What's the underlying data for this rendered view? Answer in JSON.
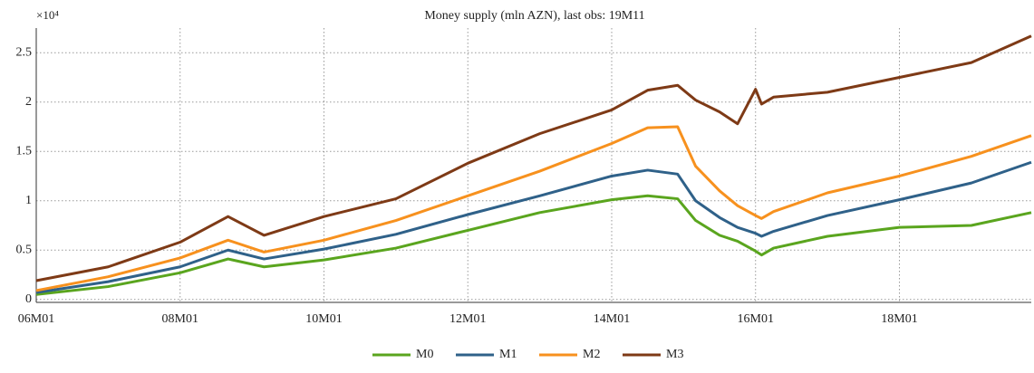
{
  "chart_data": {
    "type": "line",
    "title": "Money supply (mln AZN), last obs: 19M11",
    "y_exponent": "×10⁴",
    "x": [
      0,
      12,
      24,
      32,
      38,
      48,
      60,
      72,
      84,
      96,
      102,
      107,
      110,
      114,
      117,
      120,
      121,
      123,
      132,
      144,
      156,
      166
    ],
    "xlim": [
      0,
      166
    ],
    "xticks": [
      {
        "value": 0,
        "label": "06M01"
      },
      {
        "value": 24,
        "label": "08M01"
      },
      {
        "value": 48,
        "label": "10M01"
      },
      {
        "value": 72,
        "label": "12M01"
      },
      {
        "value": 96,
        "label": "14M01"
      },
      {
        "value": 120,
        "label": "16M01"
      },
      {
        "value": 144,
        "label": "18M01"
      }
    ],
    "ylim": [
      -300,
      27500
    ],
    "yticks": [
      0,
      {
        "value": 5000,
        "label": "0.5"
      },
      {
        "value": 10000,
        "label": "1"
      },
      {
        "value": 15000,
        "label": "1.5"
      },
      {
        "value": 20000,
        "label": "2"
      },
      {
        "value": 25000,
        "label": "2.5"
      }
    ],
    "grid": true,
    "legend": "bottom",
    "series": [
      {
        "name": "M0",
        "color": "#5aa51e",
        "values": [
          500,
          1300,
          2700,
          4100,
          3300,
          4000,
          5200,
          7000,
          8800,
          10100,
          10500,
          10200,
          8000,
          6500,
          5900,
          4900,
          4500,
          5200,
          6400,
          7300,
          7500,
          8800
        ]
      },
      {
        "name": "M1",
        "color": "#2f6189",
        "values": [
          700,
          1800,
          3300,
          5000,
          4100,
          5100,
          6600,
          8600,
          10500,
          12500,
          13100,
          12700,
          10000,
          8300,
          7300,
          6700,
          6400,
          6900,
          8500,
          10100,
          11800,
          13900
        ]
      },
      {
        "name": "M2",
        "color": "#f7911e",
        "values": [
          900,
          2300,
          4200,
          6000,
          4800,
          6000,
          8000,
          10500,
          13000,
          15800,
          17400,
          17500,
          13500,
          11000,
          9500,
          8500,
          8200,
          8900,
          10800,
          12500,
          14500,
          16600
        ]
      },
      {
        "name": "M3",
        "color": "#7e3a16",
        "values": [
          1900,
          3300,
          5800,
          8400,
          6500,
          8400,
          10200,
          13800,
          16800,
          19200,
          21200,
          21700,
          20200,
          19000,
          17800,
          21300,
          19800,
          20500,
          21000,
          22500,
          24000,
          26700
        ]
      }
    ]
  }
}
